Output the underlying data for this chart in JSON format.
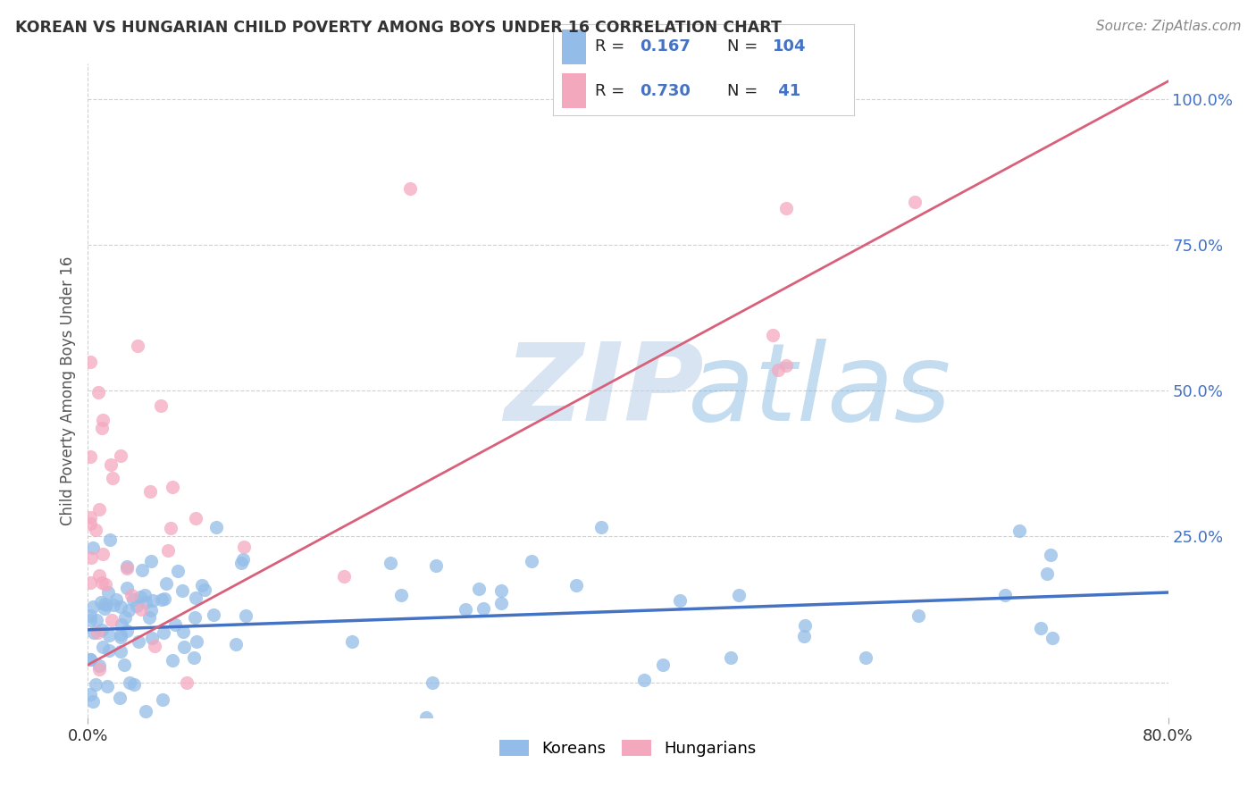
{
  "title": "KOREAN VS HUNGARIAN CHILD POVERTY AMONG BOYS UNDER 16 CORRELATION CHART",
  "source": "Source: ZipAtlas.com",
  "ylabel": "Child Poverty Among Boys Under 16",
  "xlim": [
    0.0,
    0.8
  ],
  "ylim": [
    -0.06,
    1.06
  ],
  "ytick_vals": [
    0.0,
    0.25,
    0.5,
    0.75,
    1.0
  ],
  "ytick_labels": [
    "",
    "25.0%",
    "50.0%",
    "75.0%",
    "100.0%"
  ],
  "xtick_vals": [
    0.0,
    0.8
  ],
  "xtick_labels": [
    "0.0%",
    "80.0%"
  ],
  "korean_color": "#93bde8",
  "hungarian_color": "#f4a8be",
  "korean_line_color": "#4472c4",
  "hungarian_line_color": "#d9607a",
  "watermark_zip": "ZIP",
  "watermark_atlas": "atlas",
  "legend_r_korean": "0.167",
  "legend_n_korean": "104",
  "legend_r_hungarian": "0.730",
  "legend_n_hungarian": "41",
  "background_color": "#ffffff",
  "grid_color": "#d0d0d0",
  "title_color": "#333333",
  "source_color": "#888888",
  "tick_label_color": "#4472c4",
  "ylabel_color": "#555555"
}
